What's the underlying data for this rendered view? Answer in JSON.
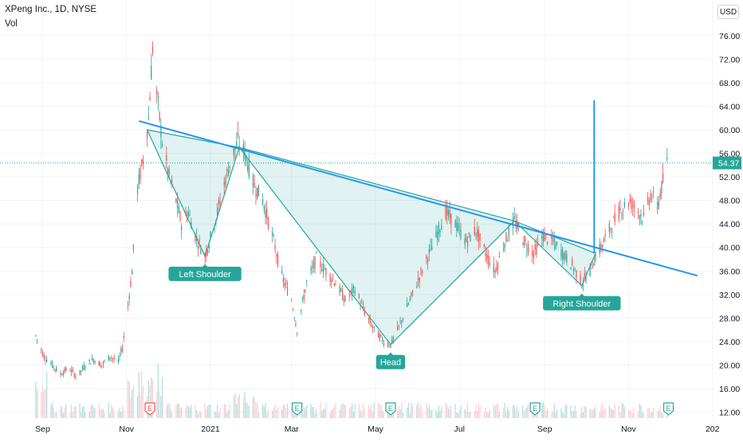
{
  "header": {
    "title": "XPeng Inc., 1D, NYSE",
    "indicator": "Vol",
    "currency": "USD"
  },
  "chart_data": {
    "type": "candlestick",
    "symbol": "XPeng Inc.",
    "interval": "1D",
    "exchange": "NYSE",
    "currency": "USD",
    "last_price": 54.37,
    "price_axis": {
      "range": [
        11,
        78
      ],
      "ticks": [
        12.0,
        16.0,
        20.0,
        24.0,
        28.0,
        32.0,
        36.0,
        40.0,
        44.0,
        48.0,
        52.0,
        56.0,
        60.0,
        64.0,
        68.0,
        72.0,
        76.0
      ]
    },
    "time_axis": {
      "range": [
        "2020-08-01",
        "2021-12-31"
      ],
      "ticks": [
        {
          "label": "Sep",
          "date": "2020-09-01"
        },
        {
          "label": "Nov",
          "date": "2020-11-01"
        },
        {
          "label": "2021",
          "date": "2021-01-01"
        },
        {
          "label": "Mar",
          "date": "2021-03-01"
        },
        {
          "label": "May",
          "date": "2021-05-01"
        },
        {
          "label": "Jul",
          "date": "2021-07-01"
        },
        {
          "label": "Sep",
          "date": "2021-09-01"
        },
        {
          "label": "Nov",
          "date": "2021-11-01"
        },
        {
          "label": "202",
          "date": "2022-01-01"
        }
      ]
    },
    "price_path": [
      [
        "2020-08-27",
        25
      ],
      [
        "2020-09-02",
        21.5
      ],
      [
        "2020-09-08",
        20
      ],
      [
        "2020-09-14",
        18.5
      ],
      [
        "2020-09-20",
        19.5
      ],
      [
        "2020-09-26",
        18
      ],
      [
        "2020-10-02",
        20
      ],
      [
        "2020-10-08",
        21
      ],
      [
        "2020-10-14",
        20
      ],
      [
        "2020-10-20",
        21.5
      ],
      [
        "2020-10-26",
        20.5
      ],
      [
        "2020-10-29",
        23
      ],
      [
        "2020-11-02",
        30
      ],
      [
        "2020-11-05",
        36
      ],
      [
        "2020-11-09",
        50
      ],
      [
        "2020-11-13",
        55
      ],
      [
        "2020-11-17",
        62
      ],
      [
        "2020-11-20",
        74
      ],
      [
        "2020-11-23",
        66
      ],
      [
        "2020-11-27",
        58
      ],
      [
        "2020-12-02",
        52
      ],
      [
        "2020-12-07",
        48
      ],
      [
        "2020-12-11",
        44
      ],
      [
        "2020-12-16",
        46
      ],
      [
        "2020-12-21",
        42
      ],
      [
        "2020-12-28",
        38.5
      ],
      [
        "2021-01-04",
        44
      ],
      [
        "2021-01-10",
        50
      ],
      [
        "2021-01-16",
        55
      ],
      [
        "2021-01-21",
        58
      ],
      [
        "2021-01-26",
        56
      ],
      [
        "2021-02-01",
        51
      ],
      [
        "2021-02-08",
        48
      ],
      [
        "2021-02-15",
        42
      ],
      [
        "2021-02-22",
        35
      ],
      [
        "2021-03-01",
        31
      ],
      [
        "2021-03-05",
        26
      ],
      [
        "2021-03-12",
        34
      ],
      [
        "2021-03-19",
        38
      ],
      [
        "2021-03-26",
        36
      ],
      [
        "2021-04-02",
        34
      ],
      [
        "2021-04-09",
        31
      ],
      [
        "2021-04-16",
        33
      ],
      [
        "2021-04-23",
        29
      ],
      [
        "2021-04-30",
        26
      ],
      [
        "2021-05-07",
        24
      ],
      [
        "2021-05-12",
        23.5
      ],
      [
        "2021-05-19",
        27
      ],
      [
        "2021-05-26",
        31
      ],
      [
        "2021-06-02",
        35
      ],
      [
        "2021-06-09",
        39
      ],
      [
        "2021-06-16",
        43
      ],
      [
        "2021-06-21",
        46
      ],
      [
        "2021-06-28",
        44
      ],
      [
        "2021-07-06",
        41
      ],
      [
        "2021-07-13",
        43
      ],
      [
        "2021-07-20",
        39
      ],
      [
        "2021-07-27",
        36
      ],
      [
        "2021-08-03",
        41
      ],
      [
        "2021-08-10",
        44.5
      ],
      [
        "2021-08-17",
        41
      ],
      [
        "2021-08-24",
        39
      ],
      [
        "2021-08-31",
        42
      ],
      [
        "2021-09-07",
        41
      ],
      [
        "2021-09-14",
        39
      ],
      [
        "2021-09-21",
        37
      ],
      [
        "2021-09-28",
        34
      ],
      [
        "2021-10-04",
        36
      ],
      [
        "2021-10-08",
        38.5
      ],
      [
        "2021-10-12",
        40
      ],
      [
        "2021-10-18",
        43
      ],
      [
        "2021-10-25",
        46
      ],
      [
        "2021-11-01",
        48
      ],
      [
        "2021-11-05",
        47
      ],
      [
        "2021-11-12",
        45
      ],
      [
        "2021-11-17",
        49
      ],
      [
        "2021-11-22",
        47
      ],
      [
        "2021-11-29",
        54.4
      ]
    ],
    "spike": {
      "date": "2021-10-07",
      "high": 65,
      "low": 39
    },
    "trendline": {
      "start": [
        "2020-11-10",
        61.5
      ],
      "end": [
        "2021-12-21",
        35.2
      ],
      "color": "#2196f3"
    },
    "pattern": {
      "name": "Head and Shoulders",
      "fill_color": "#26a69a",
      "regions": [
        [
          [
            "2020-11-16",
            60
          ],
          [
            "2020-12-28",
            38.5
          ],
          [
            "2021-01-22",
            57
          ]
        ],
        [
          [
            "2021-01-22",
            57
          ],
          [
            "2021-05-12",
            23.5
          ],
          [
            "2021-08-10",
            44.5
          ]
        ],
        [
          [
            "2021-08-10",
            44.5
          ],
          [
            "2021-09-28",
            33.5
          ],
          [
            "2021-10-08",
            39
          ]
        ]
      ]
    },
    "annotations": [
      {
        "text": "Left Shoulder",
        "date": "2020-12-28",
        "price": 38.5
      },
      {
        "text": "Head",
        "date": "2021-05-12",
        "price": 23.5
      },
      {
        "text": "Right Shoulder",
        "date": "2021-09-28",
        "price": 33.5
      }
    ],
    "earnings_markers": [
      {
        "label": "E",
        "date": "2020-11-18",
        "color": "#ef5350"
      },
      {
        "label": "E",
        "date": "2021-03-05",
        "color": "#26a69a"
      },
      {
        "label": "E",
        "date": "2021-05-12",
        "color": "#26a69a"
      },
      {
        "label": "E",
        "date": "2021-08-25",
        "color": "#26a69a"
      },
      {
        "label": "E",
        "date": "2021-11-30",
        "color": "#26a69a"
      }
    ],
    "colors": {
      "up": "#26a69a",
      "down": "#ef5350",
      "volume_up": "#b2dfdb",
      "volume_down": "#ffcdd2",
      "last_price_badge": "#26a69a",
      "annotation": "#26a69a",
      "spike": "#2196f3"
    },
    "grid": true
  }
}
